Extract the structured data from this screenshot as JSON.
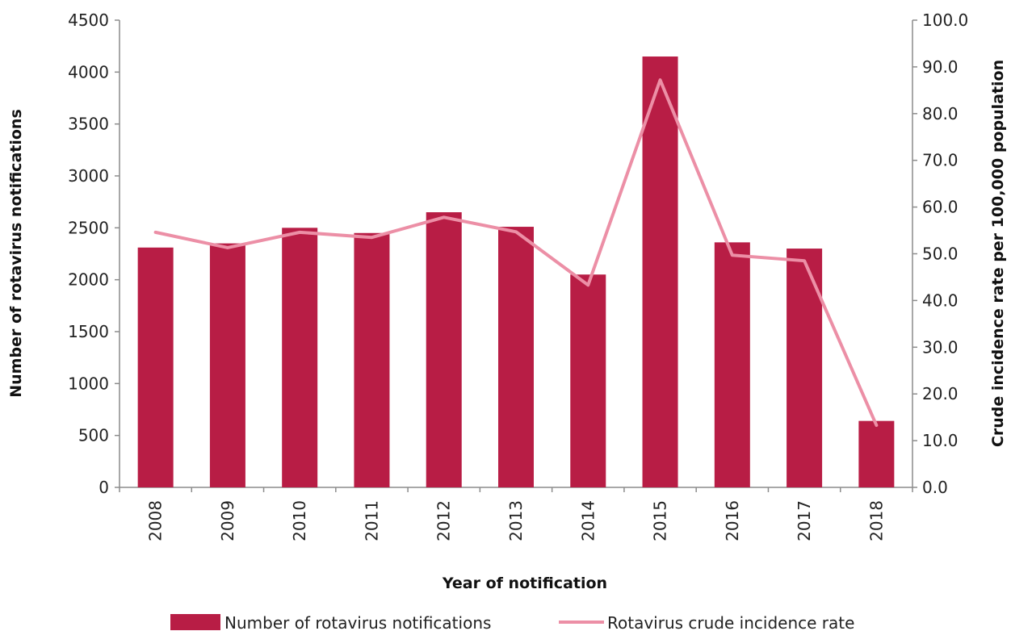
{
  "chart_data": {
    "type": "bar",
    "categories": [
      "2008",
      "2009",
      "2010",
      "2011",
      "2012",
      "2013",
      "2014",
      "2015",
      "2016",
      "2017",
      "2018"
    ],
    "series": [
      {
        "name": "Number of rotavirus notifications",
        "type": "bar",
        "axis": "left",
        "color": "#b81d45",
        "values": [
          2310,
          2350,
          2500,
          2450,
          2650,
          2510,
          2050,
          4150,
          2360,
          2300,
          640
        ]
      },
      {
        "name": "Rotavirus crude incidence rate",
        "type": "line",
        "axis": "right",
        "color": "#ec8fa6",
        "values": [
          54.6,
          51.3,
          54.6,
          53.5,
          57.8,
          54.7,
          43.3,
          87.2,
          49.7,
          48.5,
          13.3
        ]
      }
    ],
    "xlabel": "Year of notification",
    "ylabel": "Number of rotavirus notifications",
    "y2label": "Crude incidence rate per 100,000 population",
    "ylim": [
      0,
      4500
    ],
    "y2lim": [
      0,
      100
    ],
    "yticks": [
      "0",
      "500",
      "1000",
      "1500",
      "2000",
      "2500",
      "3000",
      "3500",
      "4000",
      "4500"
    ],
    "y2ticks": [
      "0.0",
      "10.0",
      "20.0",
      "30.0",
      "40.0",
      "50.0",
      "60.0",
      "70.0",
      "80.0",
      "90.0",
      "100.0"
    ],
    "grid": false,
    "legend_position": "bottom",
    "legend": [
      {
        "label": "Number of rotavirus notifications",
        "kind": "bar",
        "color": "#b81d45"
      },
      {
        "label": "Rotavirus crude incidence rate",
        "kind": "line",
        "color": "#ec8fa6"
      }
    ],
    "axis_color": "#8c8c8c"
  }
}
